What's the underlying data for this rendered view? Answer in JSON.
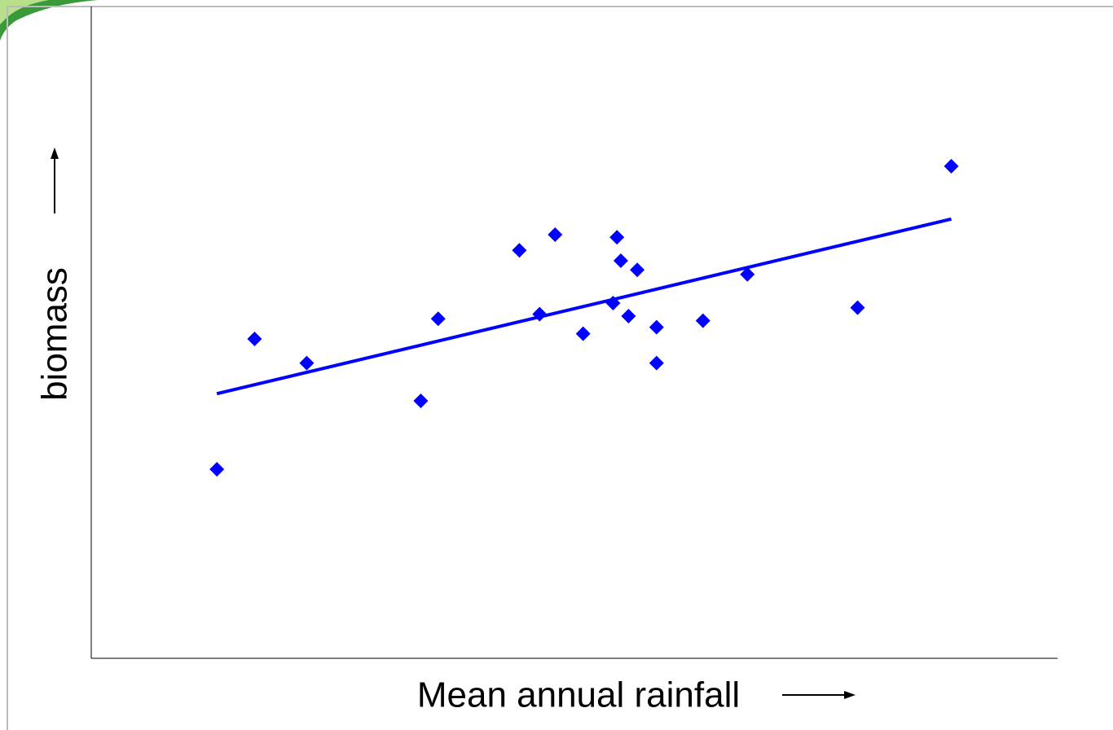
{
  "chart_data": {
    "type": "scatter",
    "x_label": "Mean annual rainfall",
    "y_label": "biomass",
    "color": "#0000ff",
    "xlim": [
      0,
      100
    ],
    "ylim": [
      0,
      100
    ],
    "x": [
      13.0,
      16.9,
      22.3,
      34.1,
      35.9,
      44.3,
      46.4,
      48.0,
      50.9,
      54.0,
      54.4,
      54.8,
      55.6,
      56.5,
      58.5,
      58.5,
      63.3,
      67.9,
      79.3,
      89.0
    ],
    "values": [
      29.0,
      49.0,
      45.3,
      39.5,
      52.1,
      62.6,
      52.8,
      65.0,
      49.8,
      54.5,
      64.6,
      61.0,
      52.5,
      59.6,
      50.8,
      45.3,
      51.8,
      58.9,
      53.8,
      75.5
    ],
    "trendline": {
      "x": [
        13.0,
        89.0
      ],
      "y": [
        40.6,
        67.4
      ]
    }
  }
}
